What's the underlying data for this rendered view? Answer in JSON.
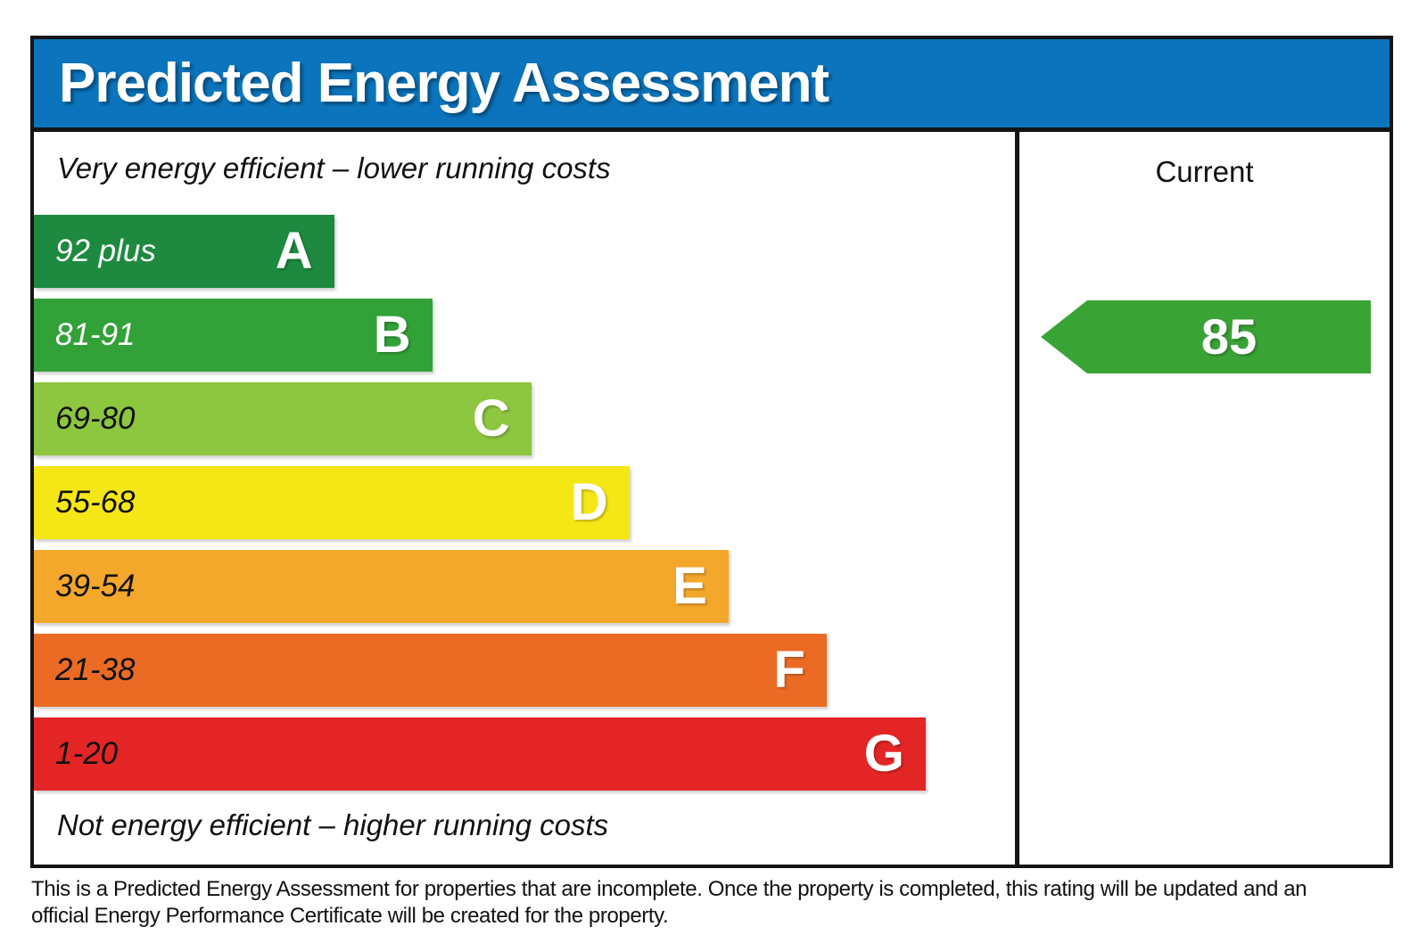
{
  "header": {
    "title": "Predicted Energy Assessment"
  },
  "notes": {
    "top": "Very energy efficient – lower running costs",
    "bottom": "Not energy efficient – higher running costs"
  },
  "current_panel": {
    "label": "Current",
    "value": "85"
  },
  "footer": {
    "lines": [
      "This is a Predicted Energy Assessment for properties that are incomplete. Once the property is completed, this rating will be updated and an",
      "official Energy Performance Certificate will be created for the property."
    ]
  },
  "colors": {
    "header_bg": "#0b74bc",
    "border": "#141414",
    "arrow_green": "#3aa336"
  },
  "chart_data": {
    "type": "bar",
    "title": "Predicted Energy Assessment",
    "orientation": "horizontal",
    "legend_position": "right-column",
    "bands": [
      {
        "grade": "A",
        "range": "92 plus",
        "color": "#1d8a3f",
        "text_color": "#ffffff",
        "width_pct": 30.6
      },
      {
        "grade": "B",
        "range": "81-91",
        "color": "#32a138",
        "text_color": "#ffffff",
        "width_pct": 40.6
      },
      {
        "grade": "C",
        "range": "69-80",
        "color": "#8dc63f",
        "text_color": "#111111",
        "width_pct": 50.7
      },
      {
        "grade": "D",
        "range": "55-68",
        "color": "#f5e616",
        "text_color": "#111111",
        "width_pct": 60.7
      },
      {
        "grade": "E",
        "range": "39-54",
        "color": "#f3a72b",
        "text_color": "#111111",
        "width_pct": 70.8
      },
      {
        "grade": "F",
        "range": "21-38",
        "color": "#eb6b25",
        "text_color": "#111111",
        "width_pct": 80.8
      },
      {
        "grade": "G",
        "range": "1-20",
        "color": "#e32526",
        "text_color": "#111111",
        "width_pct": 90.9
      }
    ],
    "current": {
      "value": 85,
      "band": "B",
      "marker_color": "#3aa336"
    }
  }
}
